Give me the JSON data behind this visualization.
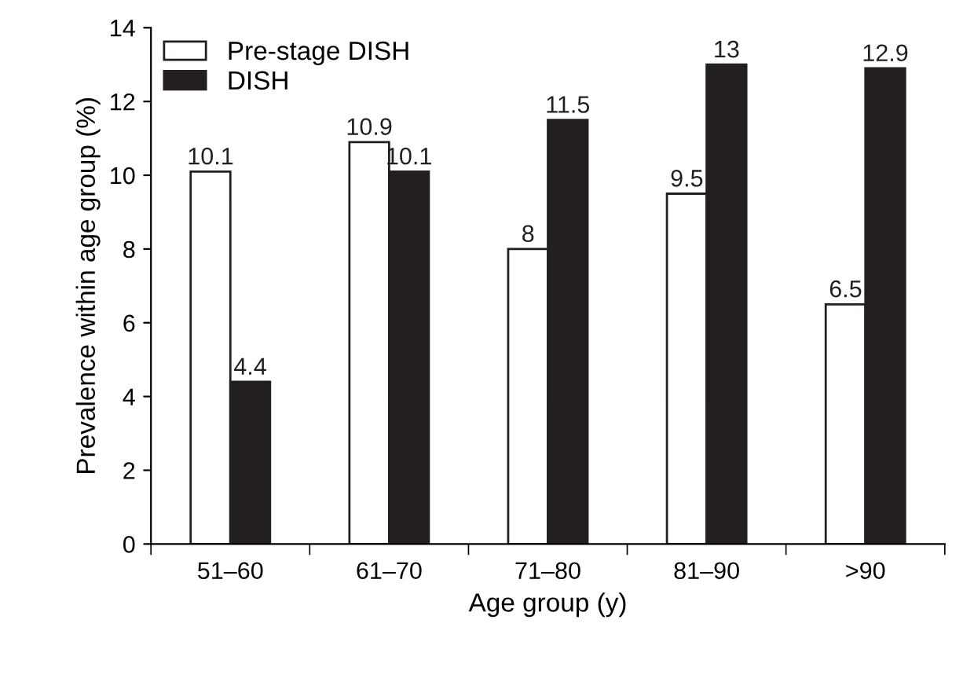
{
  "chart_data": {
    "type": "bar",
    "xlabel": "Age group (y)",
    "ylabel": "Prevalence within age group (%)",
    "categories": [
      "51–60",
      "61–70",
      "71–80",
      "81–90",
      ">90"
    ],
    "series": [
      {
        "name": "Pre-stage DISH",
        "color": "#ffffff",
        "values": [
          10.1,
          10.9,
          8,
          9.5,
          6.5
        ]
      },
      {
        "name": "DISH",
        "color": "#231f20",
        "values": [
          4.4,
          10.1,
          11.5,
          13,
          12.9
        ]
      }
    ],
    "ylim": [
      0,
      14
    ],
    "yticks": [
      0,
      2,
      4,
      6,
      8,
      10,
      12,
      14
    ],
    "data_labels": true,
    "legend": "top left",
    "grid": false
  }
}
